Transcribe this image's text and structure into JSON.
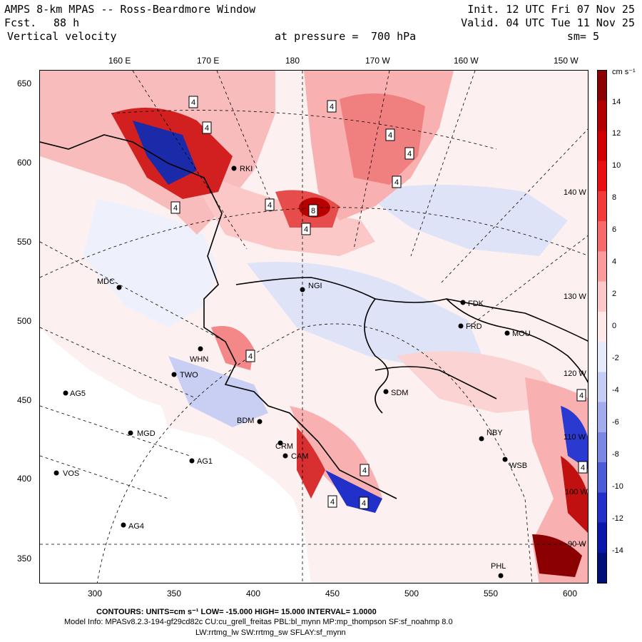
{
  "header": {
    "title": "AMPS 8-km MPAS -- Ross-Beardmore Window",
    "forecast_label": "Fcst.",
    "forecast_hours": "88 h",
    "field": "Vertical velocity",
    "level_label": "at pressure =",
    "level": "700 hPa",
    "init": "Init. 12 UTC Fri 07 Nov 25",
    "valid": "Valid. 04 UTC Tue 11 Nov 25",
    "smoothing": "sm= 5"
  },
  "map": {
    "top_lon_ticks": [
      "160 E",
      "170 E",
      "180",
      "170 W",
      "160 W",
      "150 W"
    ],
    "left_ticks": [
      "650",
      "600",
      "550",
      "500",
      "450",
      "400",
      "350"
    ],
    "bottom_ticks": [
      "300",
      "350",
      "400",
      "450",
      "500",
      "550",
      "600"
    ],
    "inner_lon_labels": [
      "140 W",
      "130 W",
      "120 W",
      "110 W",
      "100 W",
      "90 W"
    ],
    "stations": [
      {
        "id": "MDC"
      },
      {
        "id": "NGI"
      },
      {
        "id": "FDK"
      },
      {
        "id": "FRD"
      },
      {
        "id": "MOU"
      },
      {
        "id": "WHN"
      },
      {
        "id": "TWO"
      },
      {
        "id": "AG5"
      },
      {
        "id": "SDM"
      },
      {
        "id": "MGD"
      },
      {
        "id": "BDM"
      },
      {
        "id": "NBY"
      },
      {
        "id": "AG1"
      },
      {
        "id": "CAM"
      },
      {
        "id": "WSB"
      },
      {
        "id": "VOS"
      },
      {
        "id": "AG4"
      },
      {
        "id": "PHL"
      },
      {
        "id": "RKI"
      },
      {
        "id": "CRM"
      }
    ],
    "contour_labels": [
      "4",
      "4",
      "4",
      "4",
      "4",
      "4",
      "4",
      "4",
      "8",
      "4",
      "4",
      "4",
      "4",
      "4",
      "4",
      "4"
    ]
  },
  "colorbar": {
    "units": "cm s⁻¹",
    "labels": [
      "14",
      "12",
      "10",
      "8",
      "6",
      "4",
      "2",
      "0",
      "-2",
      "-4",
      "-6",
      "-8",
      "-10",
      "-12",
      "-14"
    ],
    "colors": [
      "#8b0000",
      "#b00000",
      "#d00000",
      "#e81010",
      "#f23a3a",
      "#f86a6a",
      "#fb9a9a",
      "#fdc8c8",
      "#ffe8e8",
      "#e6eafa",
      "#c6cdf4",
      "#a2acec",
      "#7a88e4",
      "#4a5cd8",
      "#2030c8",
      "#0818a8",
      "#00107a"
    ],
    "swatch_colors": [
      "#8b0000",
      "#d00000",
      "#f86a6a",
      "#fdc8c8",
      "#ffe8e8",
      "#c6cdf4",
      "#7a88e4",
      "#2030c8",
      "#0818a8"
    ]
  },
  "footer": {
    "contours": "CONTOURS:  UNITS=cm s⁻¹  LOW= -15.000      HIGH=  15.000      INTERVAL=   1.0000",
    "model_info": "Model Info: MPASv8.2.3-194-gf29cd82c CU:cu_grell_freitas PBL:bl_mynn MP:mp_thompson SF:sf_noahmp 8.0",
    "model_info2": "LW:rrtmg_lw SW:rrtmg_sw SFLAY:sf_mynn"
  }
}
